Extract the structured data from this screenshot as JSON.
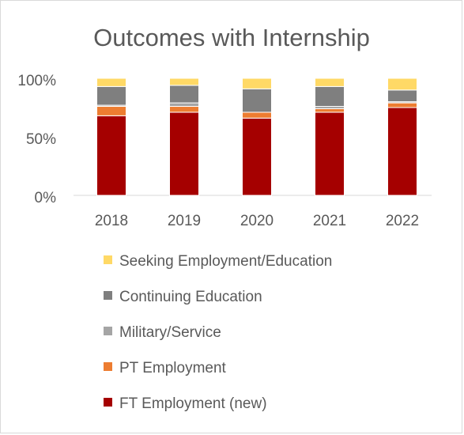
{
  "chart_data": {
    "type": "bar",
    "stacked": true,
    "title": "Outcomes with Internship",
    "xlabel": "",
    "ylabel": "",
    "ylim": [
      0,
      100
    ],
    "y_ticks": [
      "0%",
      "50%",
      "100%"
    ],
    "categories": [
      "2018",
      "2019",
      "2020",
      "2021",
      "2022"
    ],
    "series": [
      {
        "name": "FT Employment (new)",
        "color": "#a50000",
        "values": [
          68,
          71,
          66,
          71,
          75
        ]
      },
      {
        "name": "PT Employment",
        "color": "#ed7d31",
        "values": [
          8,
          5,
          5,
          3,
          4
        ]
      },
      {
        "name": "Military/Service",
        "color": "#a5a5a5",
        "values": [
          1,
          3,
          0,
          2,
          1
        ]
      },
      {
        "name": "Continuing Education",
        "color": "#7f7f7f",
        "values": [
          16,
          15,
          20,
          17,
          10
        ]
      },
      {
        "name": "Seeking Employment/Education",
        "color": "#ffd966",
        "values": [
          7,
          6,
          9,
          7,
          10
        ]
      }
    ],
    "legend_order": [
      "Seeking Employment/Education",
      "Continuing Education",
      "Military/Service",
      "PT Employment",
      "FT Employment (new)"
    ],
    "legend_position": "bottom",
    "grid": false
  }
}
